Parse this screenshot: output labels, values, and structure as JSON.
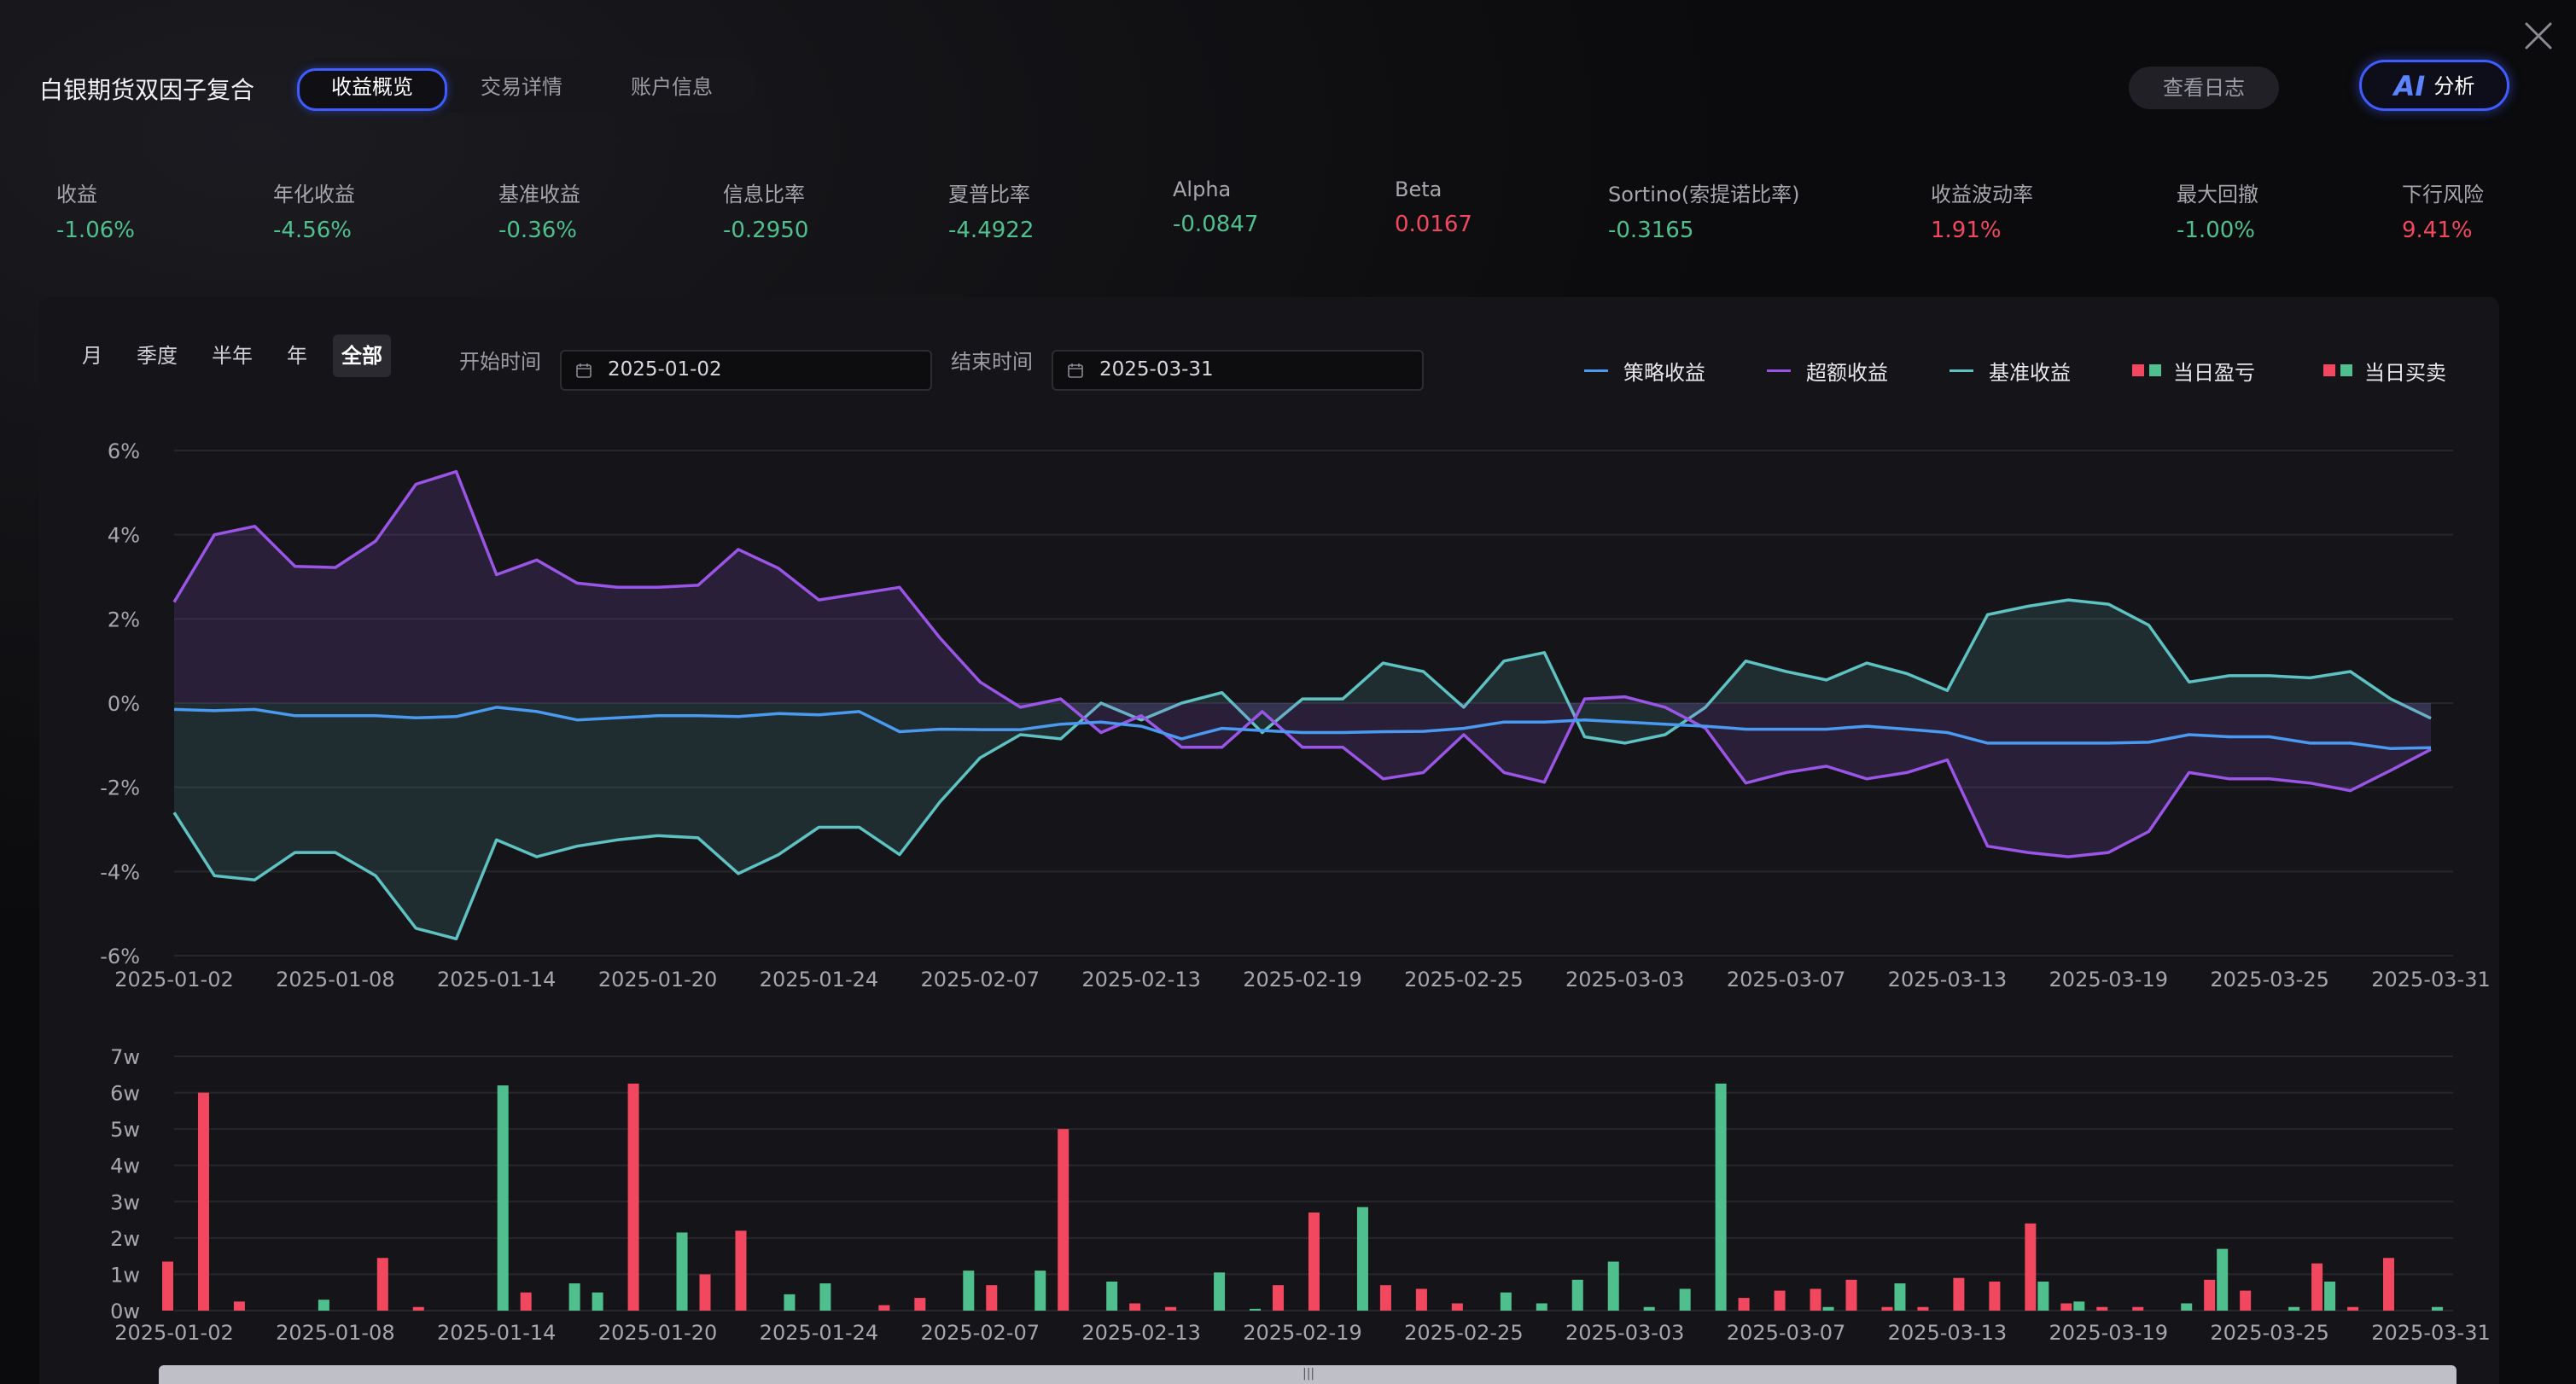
{
  "window": {
    "title": "白银期货双因子复合"
  },
  "tabs": [
    {
      "label": "收益概览",
      "active": true
    },
    {
      "label": "交易详情",
      "active": false
    },
    {
      "label": "账户信息",
      "active": false
    }
  ],
  "actions": {
    "log_label": "查看日志",
    "ai_prefix": "AI",
    "ai_label": "分析"
  },
  "metrics": [
    {
      "label": "收益",
      "value": "-1.06%",
      "tone": "neg"
    },
    {
      "label": "年化收益",
      "value": "-4.56%",
      "tone": "neg"
    },
    {
      "label": "基准收益",
      "value": "-0.36%",
      "tone": "neg"
    },
    {
      "label": "信息比率",
      "value": "-0.2950",
      "tone": "neg"
    },
    {
      "label": "夏普比率",
      "value": "-4.4922",
      "tone": "neg"
    },
    {
      "label": "Alpha",
      "value": "-0.0847",
      "tone": "neg"
    },
    {
      "label": "Beta",
      "value": "0.0167",
      "tone": "pos"
    },
    {
      "label": "Sortino(索提诺比率)",
      "value": "-0.3165",
      "tone": "neg"
    },
    {
      "label": "收益波动率",
      "value": "1.91%",
      "tone": "pos"
    },
    {
      "label": "最大回撤",
      "value": "-1.00%",
      "tone": "neg"
    },
    {
      "label": "下行风险",
      "value": "9.41%",
      "tone": "pos"
    }
  ],
  "periods": [
    {
      "label": "月",
      "active": false
    },
    {
      "label": "季度",
      "active": false
    },
    {
      "label": "半年",
      "active": false
    },
    {
      "label": "年",
      "active": false
    },
    {
      "label": "全部",
      "active": true
    }
  ],
  "date_filter": {
    "start_label": "开始时间",
    "start_value": "2025-01-02",
    "end_label": "结束时间",
    "end_value": "2025-03-31"
  },
  "legend": [
    {
      "name": "策略收益",
      "kind": "line",
      "colors": [
        "#4a9af2"
      ]
    },
    {
      "name": "超额收益",
      "kind": "line",
      "colors": [
        "#9b55e6"
      ]
    },
    {
      "name": "基准收益",
      "kind": "line",
      "colors": [
        "#5ec2c2"
      ]
    },
    {
      "name": "当日盈亏",
      "kind": "bar",
      "colors": [
        "#f2485f",
        "#4fc08d"
      ]
    },
    {
      "name": "当日买卖",
      "kind": "bar",
      "colors": [
        "#f2485f",
        "#4fc08d"
      ]
    }
  ],
  "colors": {
    "strategy": "#4a9af2",
    "excess": "#9b55e6",
    "benchmark": "#5ec2c2",
    "up": "#f2485f",
    "down": "#4fc08d"
  },
  "chart_data": [
    {
      "type": "line",
      "x_tick_labels": [
        "2025-01-02",
        "2025-01-08",
        "2025-01-14",
        "2025-01-20",
        "2025-01-24",
        "2025-02-07",
        "2025-02-13",
        "2025-02-19",
        "2025-02-25",
        "2025-03-03",
        "2025-03-07",
        "2025-03-13",
        "2025-03-19",
        "2025-03-25",
        "2025-03-31"
      ],
      "y_ticks": [
        "6%",
        "4%",
        "2%",
        "0%",
        "-2%",
        "-4%",
        "-6%"
      ],
      "ylim": [
        -6,
        6
      ],
      "grid": true,
      "series": [
        {
          "name": "策略收益",
          "values": [
            -0.15,
            -0.18,
            -0.15,
            -0.3,
            -0.3,
            -0.3,
            -0.35,
            -0.32,
            -0.1,
            -0.2,
            -0.4,
            -0.35,
            -0.3,
            -0.3,
            -0.32,
            -0.25,
            -0.28,
            -0.2,
            -0.68,
            -0.62,
            -0.63,
            -0.63,
            -0.5,
            -0.45,
            -0.55,
            -0.85,
            -0.6,
            -0.65,
            -0.7,
            -0.7,
            -0.68,
            -0.67,
            -0.6,
            -0.45,
            -0.45,
            -0.4,
            -0.45,
            -0.5,
            -0.55,
            -0.62,
            -0.62,
            -0.62,
            -0.55,
            -0.62,
            -0.7,
            -0.95,
            -0.95,
            -0.95,
            -0.95,
            -0.93,
            -0.75,
            -0.8,
            -0.8,
            -0.95,
            -0.95,
            -1.08,
            -1.06
          ]
        },
        {
          "name": "超额收益",
          "values": [
            2.4,
            4.0,
            4.2,
            3.25,
            3.22,
            3.85,
            5.2,
            5.5,
            3.05,
            3.4,
            2.85,
            2.75,
            2.75,
            2.8,
            3.65,
            3.2,
            2.45,
            2.6,
            2.75,
            1.55,
            0.5,
            -0.1,
            0.1,
            -0.7,
            -0.3,
            -1.05,
            -1.05,
            -0.2,
            -1.05,
            -1.05,
            -1.8,
            -1.65,
            -0.75,
            -1.65,
            -1.88,
            0.1,
            0.15,
            -0.1,
            -0.6,
            -1.9,
            -1.65,
            -1.5,
            -1.8,
            -1.65,
            -1.35,
            -3.4,
            -3.55,
            -3.65,
            -3.55,
            -3.05,
            -1.65,
            -1.8,
            -1.8,
            -1.9,
            -2.08,
            -1.6,
            -1.1
          ]
        },
        {
          "name": "基准收益",
          "values": [
            -2.6,
            -4.1,
            -4.2,
            -3.55,
            -3.55,
            -4.1,
            -5.35,
            -5.6,
            -3.25,
            -3.65,
            -3.4,
            -3.25,
            -3.15,
            -3.2,
            -4.05,
            -3.6,
            -2.95,
            -2.95,
            -3.6,
            -2.35,
            -1.3,
            -0.75,
            -0.85,
            0.0,
            -0.4,
            0.0,
            0.25,
            -0.7,
            0.1,
            0.1,
            0.95,
            0.75,
            -0.1,
            1.0,
            1.2,
            -0.8,
            -0.95,
            -0.75,
            -0.1,
            1.0,
            0.75,
            0.55,
            0.95,
            0.7,
            0.3,
            2.1,
            2.3,
            2.45,
            2.35,
            1.85,
            0.5,
            0.65,
            0.65,
            0.6,
            0.75,
            0.1,
            -0.36
          ]
        }
      ]
    },
    {
      "type": "bar",
      "x_tick_labels": [
        "2025-01-02",
        "2025-01-08",
        "2025-01-14",
        "2025-01-20",
        "2025-01-24",
        "2025-02-07",
        "2025-02-13",
        "2025-02-19",
        "2025-02-25",
        "2025-03-03",
        "2025-03-07",
        "2025-03-13",
        "2025-03-19",
        "2025-03-25",
        "2025-03-31"
      ],
      "y_ticks": [
        "7w",
        "6w",
        "5w",
        "4w",
        "3w",
        "2w",
        "1w",
        "0w"
      ],
      "ylim": [
        0,
        7
      ],
      "unit": "w",
      "grid": true,
      "series": [
        {
          "name": "当日盈亏",
          "values": [
            1.35,
            6.0,
            0.25,
            0,
            0,
            0,
            1.45,
            0.1,
            0,
            0,
            0.5,
            0,
            0.5,
            6.25,
            0,
            1.0,
            2.2,
            0,
            0,
            0,
            0.15,
            0.35,
            0,
            0.7,
            0,
            5.0,
            0,
            0.2,
            0.1,
            0,
            0,
            0.7,
            2.7,
            0,
            0.7,
            0.6,
            0.2,
            0,
            0,
            0,
            0,
            0,
            0,
            0,
            0.35,
            0.55,
            0.6,
            0.85,
            0.1,
            0.1,
            0.9,
            0.8,
            2.4,
            0.2,
            0.1,
            0.1,
            0,
            0.85,
            0.55,
            0,
            1.3,
            0.1,
            1.45,
            0
          ],
          "directions": [
            "up",
            "up",
            "up",
            "down",
            "down",
            "down",
            "up",
            "up",
            "down",
            "down",
            "up",
            "down",
            "down",
            "up",
            "down",
            "up",
            "up",
            "down",
            "down",
            "down",
            "up",
            "up",
            "down",
            "up",
            "down",
            "up",
            "down",
            "up",
            "up",
            "down",
            "down",
            "up",
            "up",
            "down",
            "up",
            "up",
            "up",
            "down",
            "down",
            "down",
            "down",
            "down",
            "down",
            "down",
            "up",
            "up",
            "up",
            "up",
            "up",
            "up",
            "up",
            "up",
            "up",
            "up",
            "up",
            "up",
            "down",
            "up",
            "up",
            "down",
            "up",
            "up",
            "up",
            "down"
          ]
        },
        {
          "name": "当日买卖",
          "values": [
            0,
            0,
            0,
            0,
            0.3,
            0,
            0,
            0,
            0,
            6.2,
            0,
            0.75,
            0,
            0,
            2.15,
            0,
            0,
            0.45,
            0.75,
            0,
            0,
            0,
            1.1,
            0,
            1.1,
            0,
            0.8,
            0,
            0,
            1.05,
            0.05,
            0,
            0,
            2.85,
            0,
            0,
            0,
            0.5,
            0.2,
            0.85,
            1.35,
            0.1,
            0.6,
            6.25,
            0,
            0,
            0.1,
            0,
            0.75,
            0,
            0,
            0,
            0.8,
            0.25,
            0,
            0,
            0.2,
            1.7,
            0,
            0.1,
            0.8,
            0,
            0,
            0.1
          ]
        }
      ]
    }
  ]
}
